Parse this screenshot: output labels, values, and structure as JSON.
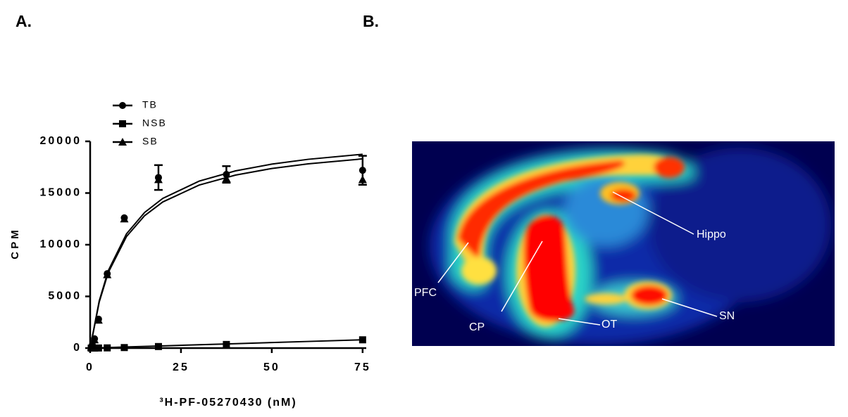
{
  "chart_data": {
    "type": "scatter",
    "panel_label": "A.",
    "x_label": "³H-PF-05270430 (nM)",
    "y_label": "C P M",
    "xlim": [
      0,
      76
    ],
    "ylim": [
      0,
      20000
    ],
    "xticks": [
      0,
      25,
      50,
      75
    ],
    "yticks": [
      0,
      5000,
      10000,
      15000,
      20000
    ],
    "x": [
      0.3,
      0.6,
      1.2,
      2.3,
      4.7,
      9.4,
      18.8,
      37.5,
      75
    ],
    "fit_x": [
      0,
      2.5,
      5,
      10,
      15,
      20,
      30,
      40,
      50,
      60,
      75
    ],
    "legend": "top-left",
    "series": [
      {
        "name": "TB",
        "marker": "circle",
        "color": "#000000",
        "values": [
          100,
          300,
          900,
          2800,
          7200,
          12600,
          16500,
          16800,
          17200
        ],
        "errors": [
          null,
          null,
          null,
          null,
          null,
          null,
          1200,
          800,
          1400
        ],
        "fit_values": [
          0,
          4565,
          7500,
          11053,
          13125,
          14483,
          16154,
          17143,
          17797,
          18261,
          18750
        ]
      },
      {
        "name": "NSB",
        "marker": "square",
        "color": "#000000",
        "values": [
          0,
          0,
          0,
          10,
          20,
          50,
          150,
          350,
          800
        ],
        "fit_values": [
          0,
          27,
          54,
          107,
          161,
          214,
          321,
          428,
          535,
          642,
          803
        ]
      },
      {
        "name": "SB",
        "marker": "triangle",
        "color": "#000000",
        "values": [
          100,
          300,
          800,
          2700,
          7100,
          12500,
          16300,
          16400,
          16300
        ],
        "fit_values": [
          0,
          4457,
          7321,
          10789,
          12813,
          14138,
          15769,
          16735,
          17373,
          17826,
          18304
        ]
      }
    ]
  },
  "panel_b": {
    "panel_label": "B.",
    "annotations": [
      "Hippo",
      "PFC",
      "CP",
      "OT",
      "SN"
    ]
  }
}
